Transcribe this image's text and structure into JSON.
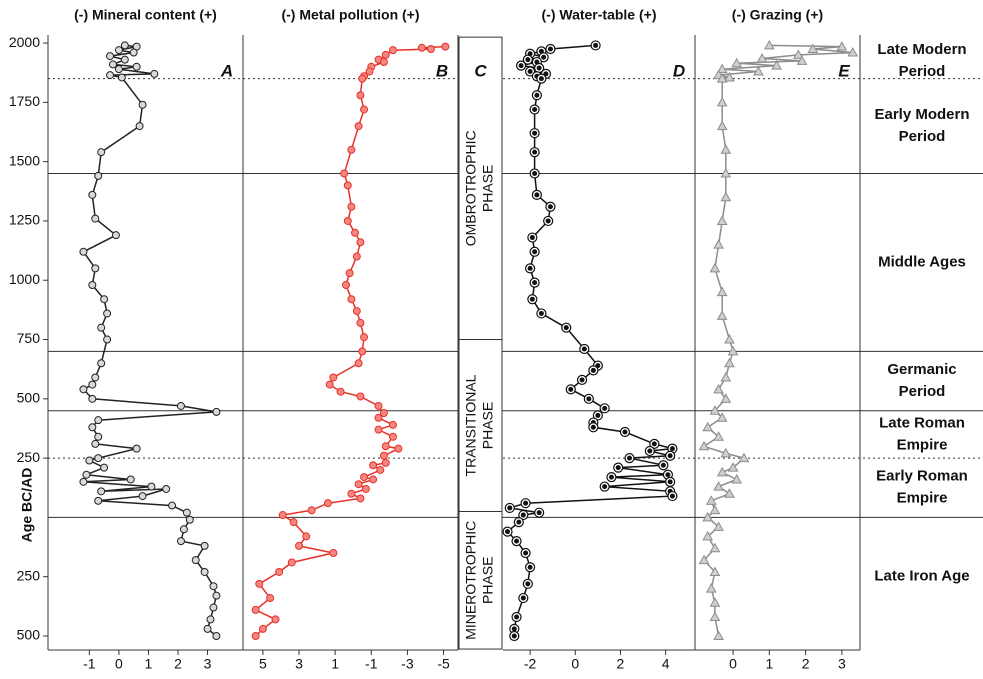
{
  "age_axis": {
    "label": "Age BC/AD",
    "ylim": [
      -559,
      2034
    ],
    "yticks": [
      2000,
      1750,
      1500,
      1250,
      1000,
      750,
      500,
      250,
      {
        "value": -250,
        "label": "250"
      },
      {
        "value": -500,
        "label": "500"
      }
    ]
  },
  "boundaries": [
    {
      "value": 1850,
      "style": "dotted"
    },
    {
      "value": 1450,
      "style": "solid"
    },
    {
      "value": 700,
      "style": "solid"
    },
    {
      "value": 450,
      "style": "solid"
    },
    {
      "value": 250,
      "style": "dotted"
    },
    {
      "value": 0,
      "style": "solid"
    }
  ],
  "periods": [
    {
      "label": [
        "Late Modern",
        "Period"
      ],
      "from": 1850,
      "to": 2000
    },
    {
      "label": [
        "Early Modern",
        "Period"
      ],
      "from": 1450,
      "to": 1850
    },
    {
      "label": [
        "Middle Ages"
      ],
      "from": 700,
      "to": 1450
    },
    {
      "label": [
        "Germanic",
        "Period"
      ],
      "from": 450,
      "to": 700
    },
    {
      "label": [
        "Late Roman",
        "Empire"
      ],
      "from": 250,
      "to": 450
    },
    {
      "label": [
        "Early Roman",
        "Empire"
      ],
      "from": 0,
      "to": 250
    },
    {
      "label": [
        "Late Iron Age"
      ],
      "from": -500,
      "to": 0
    }
  ],
  "phase_letter": "C",
  "phases": [
    {
      "label": [
        "OMBROTROPHIC",
        "PHASE"
      ],
      "from": 750,
      "to": 2025
    },
    {
      "label": [
        "TRANSITIONAL",
        "PHASE"
      ],
      "from": 25,
      "to": 750
    },
    {
      "label": [
        "MINEROTROPHIC",
        "PHASE"
      ],
      "from": -555,
      "to": 25
    }
  ],
  "chart_data": [
    {
      "type": "line",
      "title": "(-) Mineral content (+)",
      "letter": "A",
      "color": "#222222",
      "marker": "circle",
      "marker_fill": "#d9d9d9",
      "xlim": [
        -2.4,
        4.2
      ],
      "xticks": [
        -1,
        0,
        1,
        2,
        3
      ],
      "values": [
        0.2,
        0.6,
        0.0,
        0.5,
        -0.3,
        0.2,
        -0.2,
        0.6,
        0.0,
        1.2,
        -0.3,
        0.1,
        0.8,
        0.7,
        -0.6,
        -0.7,
        -0.9,
        -0.8,
        -0.1,
        -1.2,
        -0.8,
        -0.9,
        -0.5,
        -0.4,
        -0.6,
        -0.4,
        -0.6,
        -0.8,
        -0.9,
        -1.2,
        -0.9,
        2.1,
        3.3,
        -0.7,
        -0.9,
        -0.7,
        -0.8,
        0.6,
        -0.7,
        -1.0,
        -0.5,
        -1.1,
        0.4,
        -1.2,
        1.1,
        -0.6,
        1.6,
        0.8,
        -0.7,
        1.8,
        2.3,
        2.4,
        2.2,
        2.1,
        2.9,
        2.6,
        2.9,
        3.2,
        3.3,
        3.2,
        3.1,
        3.0,
        3.3
      ],
      "ages": [
        1990,
        1985,
        1970,
        1960,
        1945,
        1930,
        1910,
        1900,
        1890,
        1870,
        1865,
        1855,
        1740,
        1650,
        1540,
        1440,
        1360,
        1260,
        1190,
        1120,
        1050,
        980,
        920,
        860,
        800,
        750,
        650,
        590,
        560,
        540,
        500,
        470,
        445,
        410,
        380,
        340,
        310,
        290,
        250,
        240,
        210,
        180,
        160,
        150,
        130,
        110,
        120,
        90,
        70,
        50,
        20,
        -10,
        -50,
        -100,
        -120,
        -180,
        -230,
        -290,
        -330,
        -380,
        -430,
        -470,
        -500
      ]
    },
    {
      "type": "line",
      "title": "(-) Metal pollution (+)",
      "letter": "B",
      "color": "#e8302a",
      "marker": "circle",
      "marker_fill": "#f4877f",
      "xlim": [
        6.1,
        -5.8
      ],
      "xticks": [
        5,
        3,
        1,
        -1,
        -3,
        -5
      ],
      "values": [
        -5.1,
        -3.8,
        -4.3,
        -2.2,
        -1.8,
        -1.4,
        -1.7,
        -1.0,
        -0.9,
        -0.6,
        -0.5,
        -0.4,
        -0.6,
        -0.3,
        0.1,
        0.5,
        0.3,
        0.1,
        0.3,
        -0.1,
        -0.4,
        -0.2,
        0.2,
        0.4,
        0.1,
        -0.2,
        -0.4,
        -0.6,
        -0.5,
        -0.3,
        1.1,
        1.3,
        0.7,
        -0.4,
        -1.4,
        -1.7,
        -1.4,
        -2.2,
        -1.4,
        -2.2,
        -1.8,
        -2.5,
        -1.7,
        -1.8,
        -1.1,
        -1.5,
        -0.6,
        -1.1,
        -0.3,
        -0.7,
        0.1,
        -0.4,
        1.4,
        2.3,
        3.9,
        3.3,
        2.6,
        3.0,
        1.1,
        3.4,
        4.1,
        5.2,
        4.6,
        5.4,
        4.3,
        5.0,
        5.4
      ],
      "ages": [
        1985,
        1980,
        1975,
        1970,
        1950,
        1930,
        1920,
        1900,
        1880,
        1860,
        1850,
        1780,
        1720,
        1650,
        1550,
        1450,
        1400,
        1310,
        1250,
        1200,
        1160,
        1100,
        1030,
        980,
        920,
        870,
        820,
        760,
        700,
        650,
        590,
        560,
        530,
        510,
        470,
        440,
        420,
        390,
        370,
        340,
        300,
        290,
        260,
        230,
        220,
        200,
        170,
        160,
        140,
        120,
        100,
        80,
        60,
        30,
        10,
        -20,
        -80,
        -120,
        -150,
        -190,
        -230,
        -280,
        -340,
        -390,
        -430,
        -470,
        -500
      ]
    },
    {
      "type": "line",
      "title": "(-) Water-table (+)",
      "letter": "D",
      "color": "#111111",
      "marker": "ring",
      "marker_fill": "#111111",
      "xlim": [
        -3.2,
        5.3
      ],
      "xticks": [
        -2,
        0,
        2,
        4
      ],
      "values": [
        0.9,
        -1.1,
        -1.5,
        -2.0,
        -1.4,
        -2.1,
        -1.7,
        -2.4,
        -1.6,
        -2.0,
        -1.3,
        -1.7,
        -1.5,
        -1.7,
        -1.8,
        -1.8,
        -1.8,
        -1.8,
        -1.7,
        -1.1,
        -1.2,
        -1.9,
        -1.8,
        -2.0,
        -1.8,
        -1.9,
        -1.5,
        -0.4,
        0.4,
        1.0,
        0.8,
        0.3,
        -0.2,
        0.6,
        1.3,
        1.0,
        0.8,
        0.8,
        2.2,
        3.5,
        4.3,
        3.3,
        4.2,
        2.4,
        3.9,
        1.9,
        4.1,
        1.6,
        4.2,
        1.3,
        4.2,
        4.3,
        -2.2,
        -2.9,
        -1.6,
        -2.3,
        -2.5,
        -3.0,
        -2.6,
        -2.2,
        -2.0,
        -2.1,
        -2.3,
        -2.6,
        -2.7,
        -2.7
      ],
      "ages": [
        1990,
        1975,
        1965,
        1955,
        1940,
        1930,
        1920,
        1905,
        1895,
        1880,
        1870,
        1860,
        1850,
        1780,
        1720,
        1620,
        1540,
        1450,
        1360,
        1310,
        1250,
        1180,
        1120,
        1050,
        990,
        920,
        860,
        800,
        710,
        640,
        620,
        580,
        540,
        500,
        460,
        430,
        400,
        380,
        360,
        310,
        290,
        280,
        260,
        250,
        220,
        210,
        180,
        170,
        150,
        130,
        110,
        90,
        60,
        40,
        20,
        10,
        -20,
        -60,
        -100,
        -150,
        -210,
        -280,
        -340,
        -420,
        -470,
        -500
      ]
    },
    {
      "type": "line",
      "title": "(-) Grazing (+)",
      "letter": "E",
      "color": "#8c8c8c",
      "marker": "triangle",
      "marker_fill": "#cfcfcf",
      "xlim": [
        -1.05,
        3.5
      ],
      "xticks": [
        0,
        1,
        2,
        3
      ],
      "values": [
        1.0,
        3.0,
        2.2,
        3.3,
        1.8,
        0.8,
        1.9,
        0.1,
        1.2,
        -0.3,
        0.7,
        -0.4,
        -0.1,
        -0.3,
        -0.3,
        -0.3,
        -0.2,
        -0.2,
        -0.2,
        -0.3,
        -0.4,
        -0.5,
        -0.3,
        -0.3,
        -0.1,
        0.0,
        -0.1,
        -0.2,
        -0.4,
        -0.2,
        -0.5,
        -0.3,
        -0.7,
        -0.4,
        -0.8,
        -0.2,
        0.3,
        0.0,
        -0.3,
        0.1,
        -0.4,
        -0.1,
        -0.6,
        -0.5,
        -0.7,
        -0.4,
        -0.7,
        -0.5,
        -0.8,
        -0.5,
        -0.6,
        -0.5,
        -0.5,
        -0.4
      ],
      "ages": [
        1990,
        1985,
        1975,
        1960,
        1950,
        1935,
        1925,
        1915,
        1905,
        1890,
        1880,
        1865,
        1855,
        1850,
        1750,
        1650,
        1550,
        1450,
        1350,
        1250,
        1150,
        1050,
        950,
        850,
        750,
        700,
        650,
        590,
        540,
        500,
        450,
        420,
        380,
        340,
        300,
        270,
        250,
        210,
        190,
        160,
        130,
        100,
        70,
        30,
        0,
        -40,
        -80,
        -130,
        -180,
        -230,
        -300,
        -360,
        -420,
        -500
      ]
    }
  ]
}
